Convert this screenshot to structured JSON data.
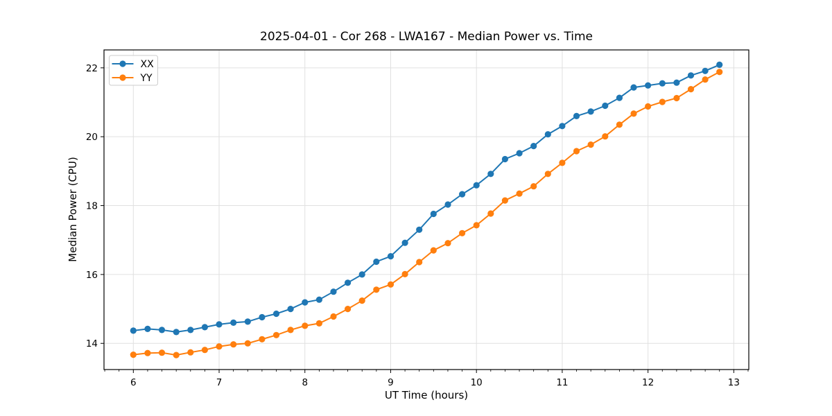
{
  "chart_data": {
    "type": "line",
    "title": "2025-04-01 - Cor 268 - LWA167 - Median Power vs. Time",
    "xlabel": "UT Time (hours)",
    "ylabel": "Median Power (CPU)",
    "xlim": [
      5.658,
      13.175
    ],
    "ylim": [
      13.24,
      22.52
    ],
    "x_ticks": [
      6,
      7,
      8,
      9,
      10,
      11,
      12,
      13
    ],
    "y_ticks": [
      14,
      16,
      18,
      20,
      22
    ],
    "x_minor_divisions": 6,
    "grid": true,
    "grid_color": "#e0e0e0",
    "axis_color": "#000000",
    "background_color": "#ffffff",
    "legend_position": "upper left",
    "legend_border_color": "#cccccc",
    "x": [
      6,
      6.1667,
      6.3333,
      6.5,
      6.6667,
      6.8333,
      7,
      7.1667,
      7.3333,
      7.5,
      7.6667,
      7.8333,
      8,
      8.1667,
      8.3333,
      8.5,
      8.6667,
      8.8333,
      9,
      9.1667,
      9.3333,
      9.5,
      9.6667,
      9.8333,
      10,
      10.1667,
      10.3333,
      10.5,
      10.6667,
      10.8333,
      11,
      11.1667,
      11.3333,
      11.5,
      11.6667,
      11.8333,
      12,
      12.1667,
      12.3333,
      12.5,
      12.6667,
      12.8333
    ],
    "series": [
      {
        "name": "XX",
        "color": "#1f77b4",
        "values": [
          14.37,
          14.42,
          14.39,
          14.33,
          14.39,
          14.47,
          14.55,
          14.6,
          14.63,
          14.76,
          14.86,
          15.0,
          15.19,
          15.27,
          15.5,
          15.76,
          16.0,
          16.37,
          16.53,
          16.92,
          17.3,
          17.76,
          18.03,
          18.33,
          18.59,
          18.92,
          19.35,
          19.52,
          19.73,
          20.07,
          20.31,
          20.6,
          20.73,
          20.9,
          21.13,
          21.43,
          21.49,
          21.55,
          21.57,
          21.78,
          21.91,
          22.09
        ]
      },
      {
        "name": "YY",
        "color": "#ff7f0e",
        "values": [
          13.67,
          13.72,
          13.73,
          13.66,
          13.74,
          13.81,
          13.91,
          13.97,
          14.0,
          14.12,
          14.24,
          14.39,
          14.51,
          14.58,
          14.78,
          15.0,
          15.24,
          15.56,
          15.71,
          16.01,
          16.36,
          16.7,
          16.91,
          17.2,
          17.43,
          17.77,
          18.15,
          18.35,
          18.56,
          18.92,
          19.24,
          19.58,
          19.77,
          20.01,
          20.35,
          20.67,
          20.88,
          21.01,
          21.12,
          21.38,
          21.66,
          21.88
        ]
      }
    ]
  }
}
